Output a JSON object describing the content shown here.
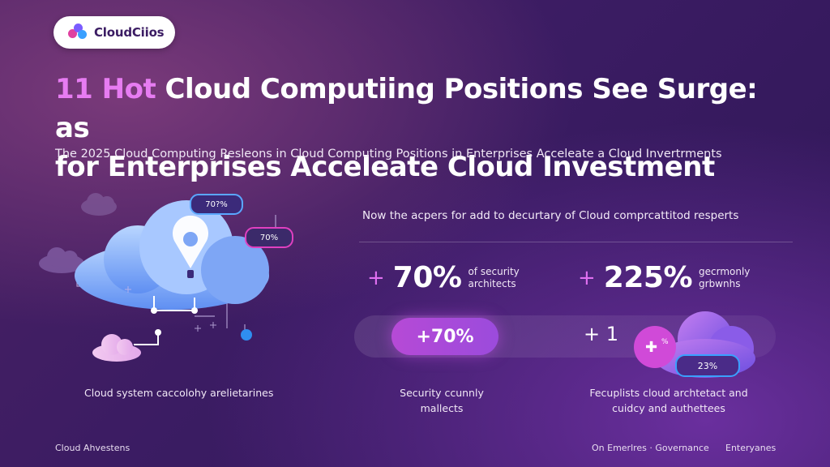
{
  "brand": {
    "name": "CloudCiios"
  },
  "title": {
    "highlight": "11 Hot",
    "line1_rest": " Cloud Computiing Positions See Surge: as",
    "line2": "for Enterprises Acceleate Cloud Investment"
  },
  "subtitle": "The 2025 Cloud Computing Resleons in Cloud Computing Positions in Enterprises Acceleate a Cloud Invertrments",
  "illustration": {
    "tag_blue": "70?%",
    "tag_pink": "70%",
    "caption": "Cloud system caccolohy arelietarines"
  },
  "stats": {
    "headline": "Now the acpers for add to decurtary of Cloud comprcattitod resperts",
    "items": [
      {
        "prefix": "+",
        "value": "70%",
        "label_line1": "of security",
        "label_line2": "architects"
      },
      {
        "prefix": "+",
        "value": "225%",
        "label_line1": "gecrmonly",
        "label_line2": "grbwnhs"
      }
    ],
    "pill_value": "+70%",
    "plus_one": "+ 1",
    "cloud_tag": "23%",
    "cloud_icon_text": "%",
    "caption_mid": [
      "Security ccunnly",
      "mallects"
    ],
    "caption_right": [
      "Fecuplists cloud archtetact and",
      "cuidcy and authettees"
    ]
  },
  "footer": {
    "left": "Cloud Ahvestens",
    "mid": "On Emerlres · Governance",
    "right": "Enteryanes"
  },
  "colors": {
    "accent_pink": "#e77cf2",
    "accent_blue": "#3aa0ff",
    "background": "#3b1c63"
  }
}
